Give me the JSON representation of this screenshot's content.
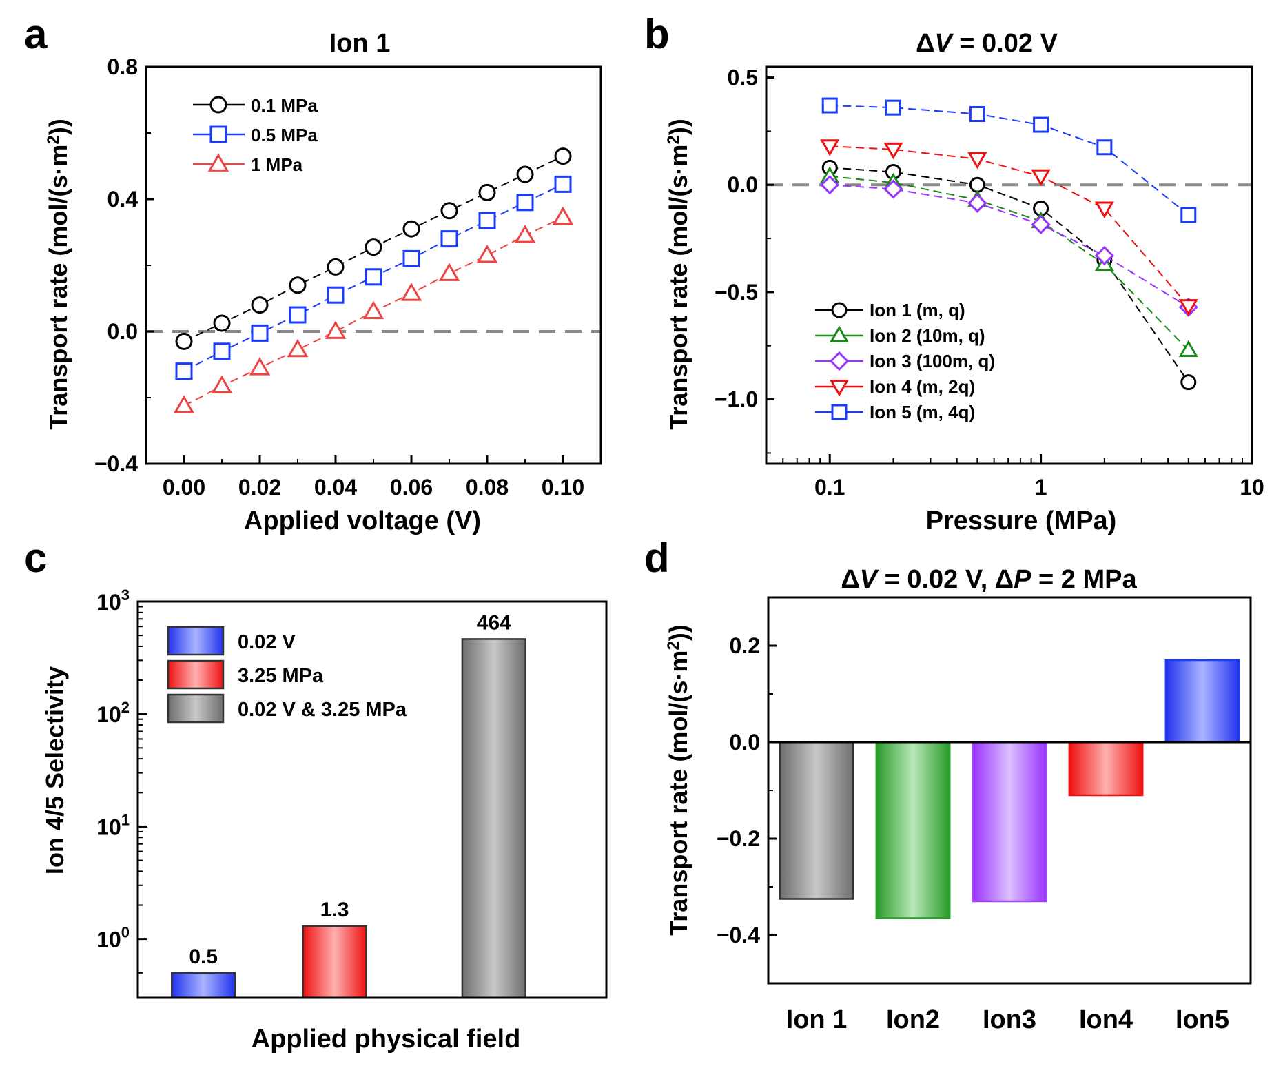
{
  "chart_data": [
    {
      "panel": "a",
      "type": "line",
      "title": "Ion 1",
      "xlabel": "Applied voltage (V)",
      "ylabel_prefix": "Transport rate (mol/(s·m",
      "ylabel_sup": "2",
      "ylabel_suffix": "))",
      "xlim": [
        -0.01,
        0.11
      ],
      "ylim": [
        -0.4,
        0.8
      ],
      "xticks": [
        "0.00",
        "0.02",
        "0.04",
        "0.06",
        "0.08",
        "0.10"
      ],
      "yticks": [
        "-0.4",
        "0.0",
        "0.4",
        "0.8"
      ],
      "zero_line": true,
      "x": [
        0.0,
        0.01,
        0.02,
        0.03,
        0.04,
        0.05,
        0.06,
        0.07,
        0.08,
        0.09,
        0.1
      ],
      "series": [
        {
          "name": "0.1 MPa",
          "color": "#000000",
          "marker": "circle",
          "values": [
            -0.03,
            0.025,
            0.08,
            0.14,
            0.195,
            0.255,
            0.31,
            0.365,
            0.42,
            0.475,
            0.53
          ]
        },
        {
          "name": "0.5 MPa",
          "color": "#1a3cff",
          "marker": "square",
          "values": [
            -0.12,
            -0.06,
            -0.005,
            0.05,
            0.11,
            0.165,
            0.22,
            0.28,
            0.335,
            0.39,
            0.445
          ]
        },
        {
          "name": "1 MPa",
          "color": "#ee4444",
          "marker": "triangle-up",
          "values": [
            -0.225,
            -0.165,
            -0.11,
            -0.055,
            0.0,
            0.06,
            0.115,
            0.175,
            0.23,
            0.29,
            0.345
          ]
        }
      ]
    },
    {
      "panel": "b",
      "type": "line",
      "title_prefix": "Δ",
      "title_italic": "V",
      "title_suffix": " = 0.02 V",
      "xlabel": "Pressure (MPa)",
      "ylabel_prefix": "Transport rate (mol/(s·m",
      "ylabel_sup": "2",
      "ylabel_suffix": "))",
      "xscale": "log",
      "xlim": [
        0.05,
        10
      ],
      "ylim": [
        -1.3,
        0.55
      ],
      "xticks": [
        "0.1",
        "1",
        "10"
      ],
      "yticks": [
        "-1.0",
        "-0.5",
        "0.0",
        "0.5"
      ],
      "zero_line": true,
      "x": [
        0.1,
        0.2,
        0.5,
        1,
        2,
        5
      ],
      "series": [
        {
          "name": "Ion 1 (m, q)",
          "color": "#000000",
          "marker": "circle",
          "values": [
            0.08,
            0.06,
            0.0,
            -0.11,
            -0.35,
            -0.92
          ]
        },
        {
          "name": "Ion 2 (10m, q)",
          "color": "#1a8a1a",
          "marker": "triangle-up",
          "values": [
            0.04,
            0.01,
            -0.07,
            -0.17,
            -0.37,
            -0.77
          ]
        },
        {
          "name": "Ion 3 (100m, q)",
          "color": "#9933ff",
          "marker": "diamond",
          "values": [
            0.0,
            -0.02,
            -0.085,
            -0.185,
            -0.33,
            -0.57
          ]
        },
        {
          "name": "Ion 4 (m, 2q)",
          "color": "#ee1111",
          "marker": "triangle-down",
          "values": [
            0.18,
            0.165,
            0.12,
            0.04,
            -0.11,
            -0.565
          ]
        },
        {
          "name": "Ion 5 (m, 4q)",
          "color": "#1a3cff",
          "marker": "square",
          "values": [
            0.37,
            0.36,
            0.33,
            0.28,
            0.175,
            -0.14
          ]
        }
      ]
    },
    {
      "panel": "c",
      "type": "bar",
      "yscale": "log",
      "xlabel": "Applied physical field",
      "ylabel": "Ion 4/5 Selectivity",
      "ylim": [
        0.3,
        1000
      ],
      "ytick_base": "10",
      "ytick_exponents": [
        "0",
        "1",
        "2",
        "3"
      ],
      "categories": [
        "0.02 V",
        "3.25 MPa",
        "0.02 V & 3.25 MPa"
      ],
      "values": [
        0.5,
        1.3,
        464
      ],
      "labels": [
        "0.5",
        "1.3",
        "464"
      ],
      "colors": [
        "#1a3cff",
        "#ee1111",
        "#808080"
      ]
    },
    {
      "panel": "d",
      "type": "bar",
      "title_prefix1": "Δ",
      "title_italic1": "V",
      "title_mid": " = 0.02 V, Δ",
      "title_italic2": "P",
      "title_suffix": " = 2 MPa",
      "ylabel_prefix": "Transport rate (mol/(s·m",
      "ylabel_sup": "2",
      "ylabel_suffix": "))",
      "ylim": [
        -0.5,
        0.3
      ],
      "yticks": [
        "-0.4",
        "-0.2",
        "0.0",
        "0.2"
      ],
      "categories": [
        "Ion 1",
        "Ion2",
        "Ion3",
        "Ion4",
        "Ion5"
      ],
      "values": [
        -0.325,
        -0.365,
        -0.33,
        -0.11,
        0.17
      ],
      "colors": [
        "#808080",
        "#2a9a2a",
        "#a044ff",
        "#ee1111",
        "#1a3cff"
      ]
    }
  ]
}
